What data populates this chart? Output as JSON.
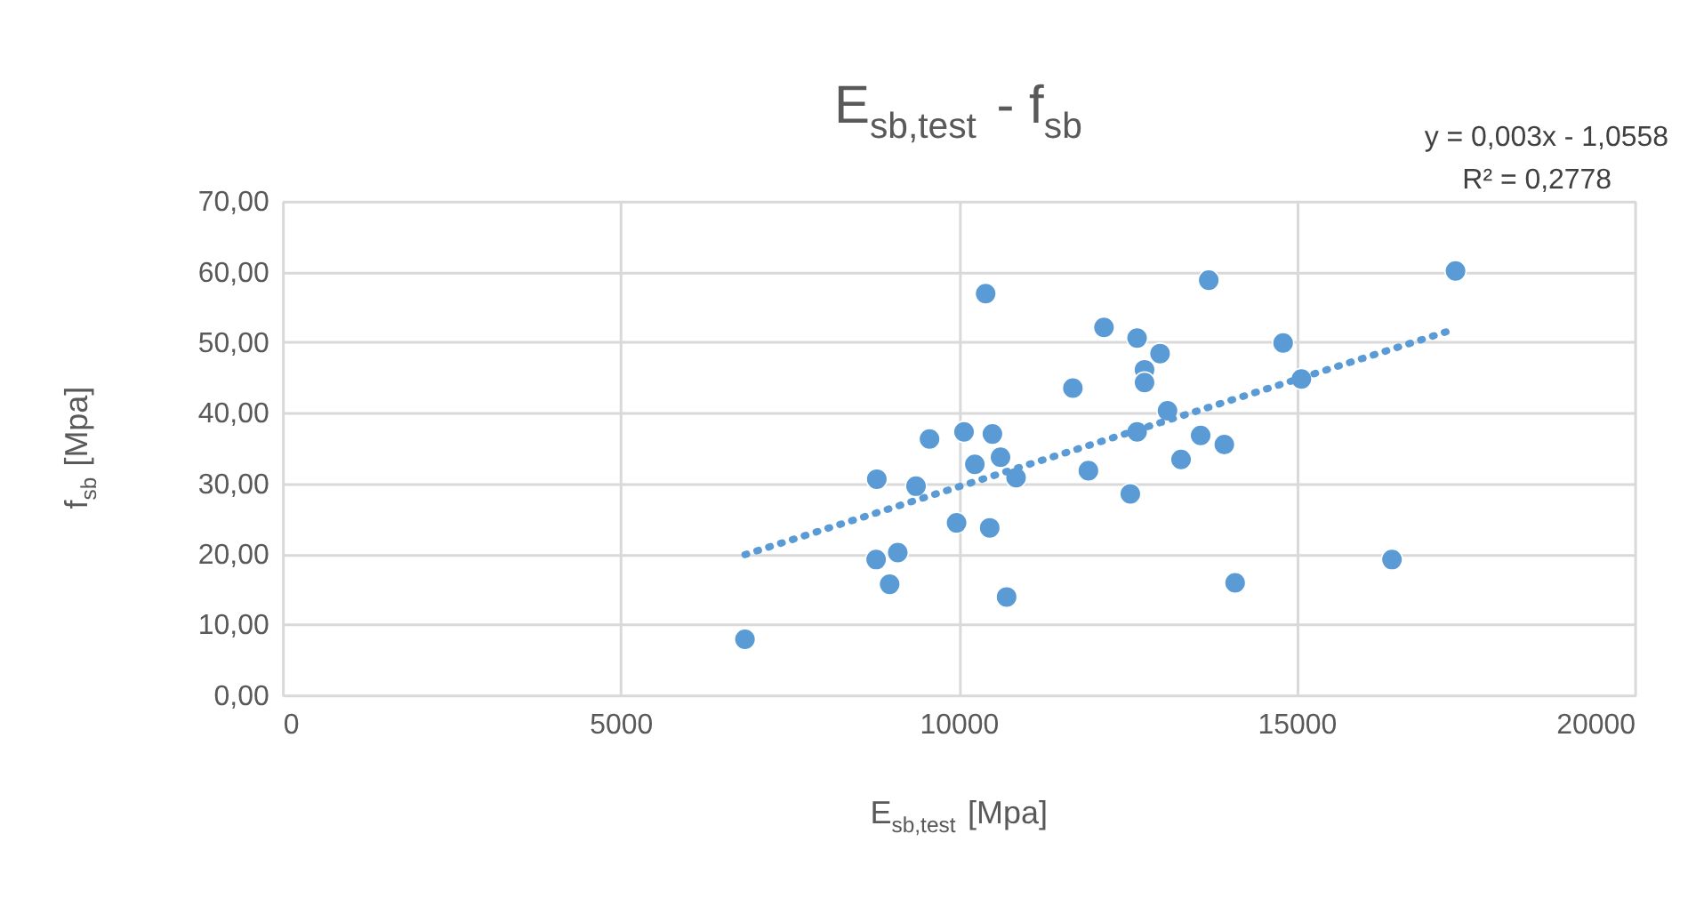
{
  "chart_data": {
    "type": "scatter",
    "title": "E$_{sb,test}$ - f$_{sb}$",
    "xlabel": "E$_{sb,test}$ [Mpa]",
    "ylabel": "f$_{sb}$ [Mpa]",
    "series": [
      {
        "color": "#5b9bd5",
        "marker": "circle",
        "x": [
          6840,
          8790,
          8780,
          9100,
          8980,
          9370,
          9570,
          10080,
          10240,
          10500,
          10620,
          10850,
          9970,
          10460,
          10710,
          10400,
          11690,
          11920,
          12150,
          12640,
          12980,
          12750,
          12750,
          13090,
          12640,
          12540,
          13700,
          13580,
          13930,
          13290,
          14090,
          14800,
          15070,
          16410,
          17350
        ],
        "values": [
          7.9,
          30.6,
          19.2,
          20.2,
          15.7,
          29.6,
          36.3,
          37.3,
          32.7,
          37.0,
          33.7,
          30.8,
          24.4,
          23.7,
          13.9,
          56.9,
          43.5,
          31.8,
          52.1,
          50.6,
          48.4,
          46.1,
          44.3,
          40.3,
          37.3,
          28.5,
          58.8,
          36.8,
          35.5,
          33.4,
          15.9,
          49.9,
          44.8,
          19.2,
          60.1
        ]
      },
      {
        "type": "line",
        "color": "#5b9bd5",
        "marker": "none",
        "line_style": "dotted",
        "x": [
          6840,
          17350
        ],
        "values": [
          19.9,
          51.9
        ]
      }
    ],
    "xlim": [
      0,
      20000
    ],
    "xticks": [
      0,
      5000,
      10000,
      15000,
      20000
    ],
    "ylim": [
      0,
      70
    ],
    "yticks": [
      {
        "value": 0,
        "label": "0,00"
      },
      {
        "value": 10,
        "label": "10,00"
      },
      {
        "value": 20,
        "label": "20,00"
      },
      {
        "value": 30,
        "label": "30,00"
      },
      {
        "value": 40,
        "label": "40,00"
      },
      {
        "value": 50,
        "label": "50,00"
      },
      {
        "value": 60,
        "label": "60,00"
      },
      {
        "value": 70,
        "label": "70,00"
      }
    ],
    "grid": true,
    "annotations": [
      "y = 0,003x - 1,0558",
      "R² = 0,2778"
    ]
  }
}
